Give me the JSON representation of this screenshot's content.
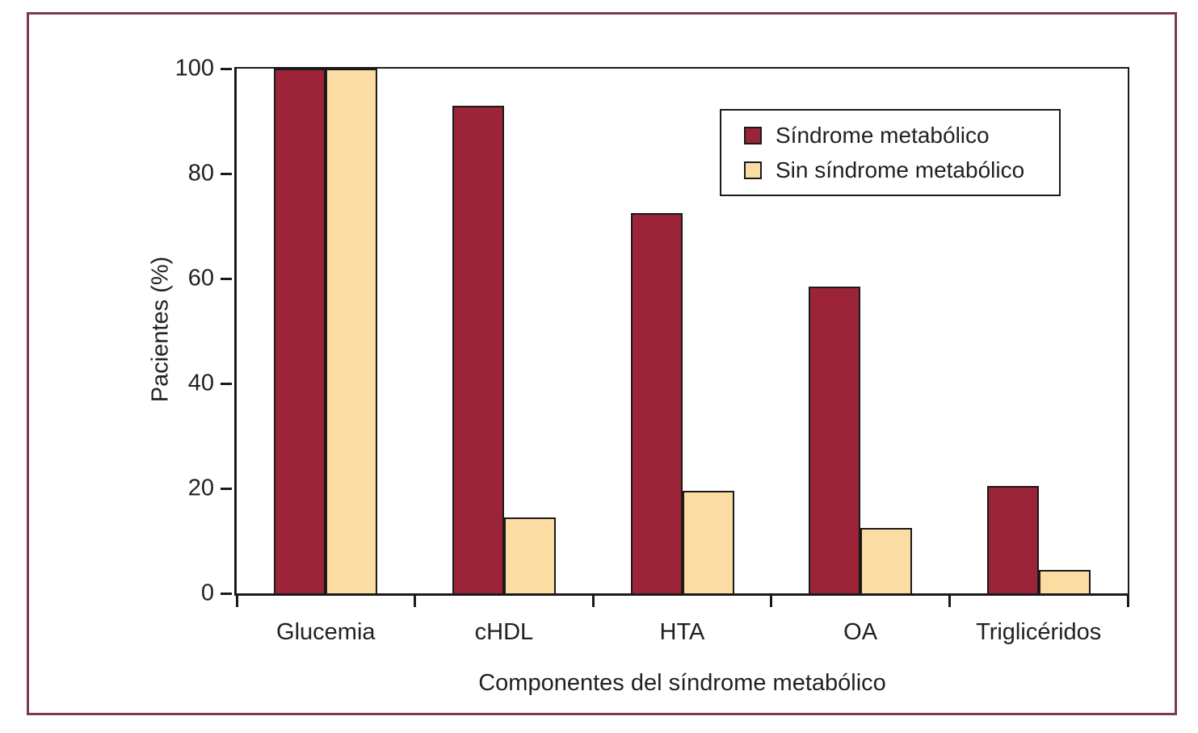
{
  "figure": {
    "frame_color": "#7e3a4d",
    "background": "#ffffff",
    "axis_color": "#1a1a1a",
    "text_color": "#231f20"
  },
  "chart_data": {
    "type": "bar",
    "title": "",
    "categories": [
      "Glucemia",
      "cHDL",
      "HTA",
      "OA",
      "Triglicéridos"
    ],
    "series": [
      {
        "name": "Síndrome metabólico",
        "color": "#9b2438",
        "values": [
          100,
          93,
          72.5,
          58.5,
          20.5
        ]
      },
      {
        "name": "Sin síndrome metabólico",
        "color": "#fbdca3",
        "values": [
          100,
          14.5,
          19.5,
          12.5,
          4.5
        ]
      }
    ],
    "xlabel": "Componentes del síndrome metabólico",
    "ylabel": "Pacientes (%)",
    "ylim": [
      0,
      100
    ],
    "yticks": [
      0,
      20,
      40,
      60,
      80,
      100
    ],
    "grid": false,
    "legend_position": "upper right",
    "bar_border_color": "#1a1a1a"
  }
}
